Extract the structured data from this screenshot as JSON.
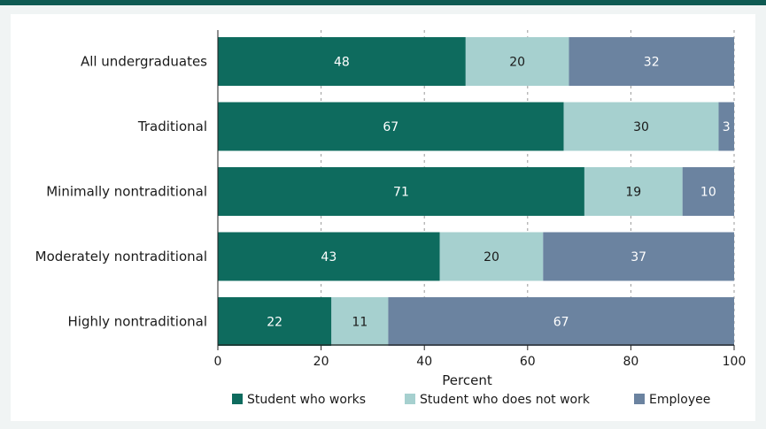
{
  "chart_data": {
    "type": "bar",
    "orientation": "horizontal",
    "stacked": true,
    "categories": [
      "All undergraduates",
      "Traditional",
      "Minimally nontraditional",
      "Moderately nontraditional",
      "Highly nontraditional"
    ],
    "series": [
      {
        "name": "Student who works",
        "values": [
          48,
          67,
          71,
          43,
          22
        ],
        "color": "#0e6b5e",
        "label_color": "#ffffff"
      },
      {
        "name": "Student who does not work",
        "values": [
          20,
          30,
          19,
          20,
          11
        ],
        "color": "#a6d0cf",
        "label_color": "#1a1a1a"
      },
      {
        "name": "Employee",
        "values": [
          32,
          3,
          10,
          37,
          67
        ],
        "color": "#6b83a0",
        "label_color": "#ffffff"
      }
    ],
    "xlabel": "Percent",
    "ylabel": "",
    "xlim": [
      0,
      100
    ],
    "xticks": [
      0,
      20,
      40,
      60,
      80,
      100
    ],
    "grid": true,
    "legend_placement": "bottom"
  }
}
